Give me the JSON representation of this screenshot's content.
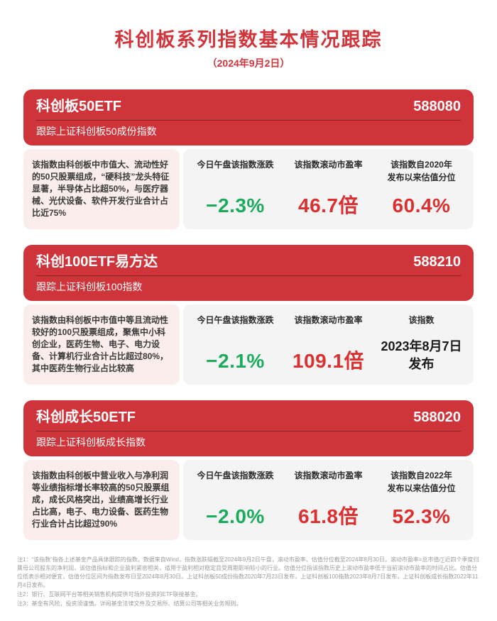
{
  "header": {
    "title": "科创板系列指数基本情况跟踪",
    "subtitle": "（2024年9月2日）"
  },
  "sections": [
    {
      "name": "科创板50ETF",
      "code": "588080",
      "tracking": "跟踪上证科创板50成份指数",
      "description": "该指数由科创板中市值大、流动性好的50只股票组成，“硬科技”龙头特征显著，半导体占比超50%，与医疗器械、光伏设备、软件开发行业合计占比近75%",
      "stats": [
        {
          "label": "今日午盘该指数涨跌",
          "value": "−2.3%",
          "color": "green"
        },
        {
          "label": "该指数滚动市盈率",
          "value": "46.7倍",
          "color": "red"
        },
        {
          "label": "该指数自2020年\n发布以来估值分位",
          "value": "60.4%",
          "color": "red"
        }
      ]
    },
    {
      "name": "科创100ETF易方达",
      "code": "588210",
      "tracking": "跟踪上证科创板100指数",
      "description": "该指数由科创板中市值中等且流动性较好的100只股票组成，聚焦中小科创企业，医药生物、电子、电力设备、计算机行业合计占比超过80%，其中医药生物行业占比较高",
      "stats": [
        {
          "label": "今日午盘该指数涨跌",
          "value": "−2.1%",
          "color": "green"
        },
        {
          "label": "该指数滚动市盈率",
          "value": "109.1倍",
          "color": "red"
        },
        {
          "label": "该指数",
          "value": "2023年8月7日\n发布",
          "color": "dark"
        }
      ]
    },
    {
      "name": "科创成长50ETF",
      "code": "588020",
      "tracking": "跟踪上证科创板成长指数",
      "description": "该指数由科创板中营业收入与净利润等业绩指标增长率较高的50只股票组成，成长风格突出，业绩高增长行业占比高，电子、电力设备、医药生物行业合计占比超过90%",
      "stats": [
        {
          "label": "今日午盘该指数涨跌",
          "value": "−2.0%",
          "color": "green"
        },
        {
          "label": "该指数滚动市盈率",
          "value": "61.8倍",
          "color": "red"
        },
        {
          "label": "该指数自2022年\n发布以来估值分位",
          "value": "52.3%",
          "color": "red"
        }
      ]
    }
  ],
  "footnotes": [
    "注1：“该指数”指各上述基金产品具体跟踪的指数。数据来自Wind，指数涨跌幅截至2024年9月2日午盘，滚动市盈率、估值分位截至2024年8月30日。滚动市盈率=总市值/∑近四个季度归属母公司股东的净利润，该估值指标和企业盈利紧密相关，适用于盈利相对稳定且受周期影响较小的行业。估值分位指该指数历史上滚动市盈率低于当前滚动市盈率的时间占比。估值分位低表示相对便宜，估值分位区间为指数发布日至2024年8月30日。上证科创板50成份指数2020年7月23日发布，上证科创板100指数2023年8月7日发布，上证科创板成长指数2022年11月4日发布。",
    "注2：银行、互联网平台等相关销售机构提供可场外投资的ETF联接基金。",
    "注3：基金有风险，投资须谨慎。详阅基金法律文件及交易所、结算公司等相关业务规则。"
  ],
  "colors": {
    "accent_red": "#cf343a",
    "value_red": "#dc2f2f",
    "value_green": "#1cab5d",
    "desc_bg": "#fceded",
    "stats_bg": "#f4f4f5"
  }
}
